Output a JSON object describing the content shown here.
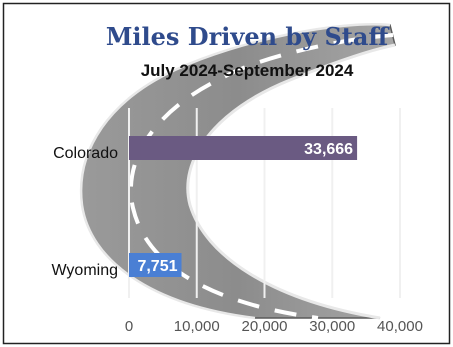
{
  "chart_data": {
    "type": "bar",
    "orientation": "horizontal",
    "title": "Miles Driven by Staff",
    "subtitle": "July 2024-September 2024",
    "categories": [
      "Colorado",
      "Wyoming"
    ],
    "values": [
      33666,
      7751
    ],
    "value_labels": [
      "33,666",
      "7,751"
    ],
    "bar_colors": [
      "#6a5a82",
      "#4a7fd4"
    ],
    "xlim": [
      0,
      40000
    ],
    "xticks": [
      0,
      10000,
      20000,
      30000,
      40000
    ],
    "xtick_labels": [
      "0",
      "10,000",
      "20,000",
      "30,000",
      "40,000"
    ],
    "grid": true,
    "legend": "none",
    "title_color": "#2f4b8c",
    "background_image": "road-curve-illustration"
  }
}
